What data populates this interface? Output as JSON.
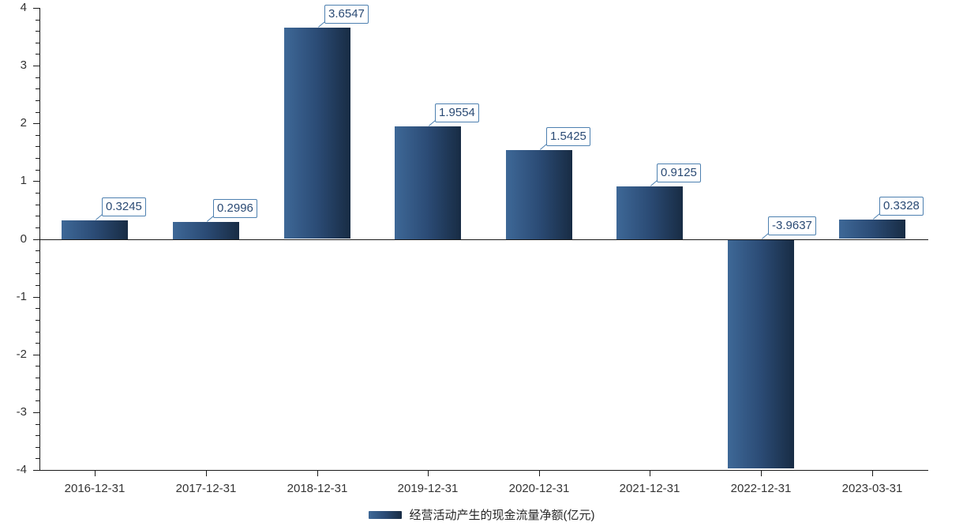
{
  "chart_data": {
    "type": "bar",
    "title": "",
    "categories": [
      "2016-12-31",
      "2017-12-31",
      "2018-12-31",
      "2019-12-31",
      "2020-12-31",
      "2021-12-31",
      "2022-12-31",
      "2023-03-31"
    ],
    "series": [
      {
        "name": "经营活动产生的现金流量净额(亿元)",
        "values": [
          0.3245,
          0.2996,
          3.6547,
          1.9554,
          1.5425,
          0.9125,
          -3.9637,
          0.3328
        ],
        "value_labels": [
          "0.3245",
          "0.2996",
          "3.6547",
          "1.9554",
          "1.5425",
          "0.9125",
          "-3.9637",
          "0.3328"
        ]
      }
    ],
    "ylim": [
      -4,
      4
    ],
    "y_tick_labels": [
      "4",
      "3",
      "2",
      "1",
      "0",
      "-1",
      "-2",
      "-3",
      "-4"
    ],
    "y_tick_interval": 1,
    "y_minor_tick_interval": 0.2,
    "grid": false,
    "legend_position": "bottom"
  },
  "colors": {
    "background": "#ffffff",
    "bar_gradient_start": "#3e6897",
    "bar_gradient_mid": "#2b4b75",
    "bar_gradient_end": "#182c44",
    "value_box_border": "#4d80b0",
    "value_text": "#2a4a74",
    "axis_line": "#1a1a1a",
    "axis_label_text": "#333333",
    "legend_text": "#262626"
  }
}
